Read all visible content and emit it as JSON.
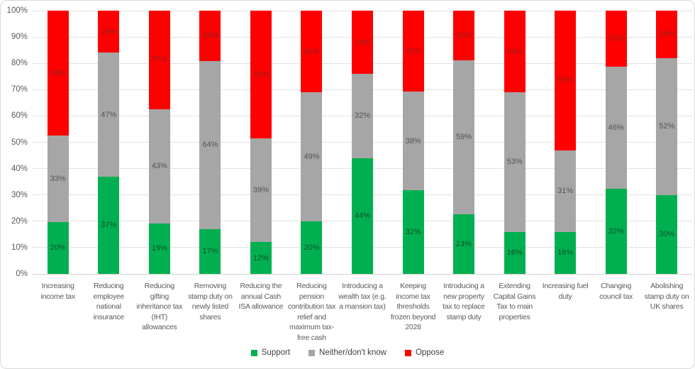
{
  "chart_data": {
    "type": "bar",
    "variant": "stacked-100-percent",
    "title": "",
    "xlabel": "",
    "ylabel": "",
    "grid": true,
    "legend_position": "bottom",
    "y_axis": {
      "min": 0,
      "max": 100,
      "tick_labels": [
        "0%",
        "10%",
        "20%",
        "30%",
        "40%",
        "50%",
        "60%",
        "70%",
        "80%",
        "90%",
        "100%"
      ]
    },
    "categories": [
      "Increasing income tax",
      "Reducing employee national insurance",
      "Reducing gifting inheritance tax (IHT) allowances",
      "Removing stamp duty on newly listed shares",
      "Reducing the annual Cash ISA allowance",
      "Reducing pension contribution tax relief and maximum tax-free cash",
      "Introducing a wealth tax (e.g. a mansion tax)",
      "Keeping income tax thresholds frozen beyond 2028",
      "Introducing a new property tax to replace stamp duty",
      "Extending Capital Gains Tax to main properties",
      "Increasing fuel duty",
      "Changing council tax",
      "Abolishing stamp duty on UK shares"
    ],
    "series": [
      {
        "name": "Support",
        "color": "#00B050",
        "label_color": "#10522C",
        "values": [
          20,
          37,
          19,
          17,
          12,
          20,
          44,
          32,
          23,
          16,
          16,
          32,
          30
        ],
        "labels": [
          "20%",
          "37%",
          "19%",
          "17%",
          "12%",
          "20%",
          "44%",
          "32%",
          "23%",
          "16%",
          "16%",
          "32%",
          "30%"
        ]
      },
      {
        "name": "Neither/don't know",
        "color": "#A6A6A6",
        "label_color": "#555555",
        "values": [
          33,
          47,
          43,
          64,
          39,
          49,
          32,
          38,
          59,
          53,
          31,
          46,
          52
        ],
        "labels": [
          "33%",
          "47%",
          "43%",
          "64%",
          "39%",
          "49%",
          "32%",
          "38%",
          "59%",
          "53%",
          "31%",
          "46%",
          "52%"
        ]
      },
      {
        "name": "Oppose",
        "color": "#FF0000",
        "label_color": "#8F2020",
        "values": [
          48,
          16,
          37,
          19,
          48,
          31,
          24,
          31,
          19,
          31,
          53,
          21,
          18
        ],
        "labels": [
          "48%",
          "16%",
          "37%",
          "19%",
          "48%",
          "31%",
          "24%",
          "31%",
          "19%",
          "31%",
          "53%",
          "21%",
          "18%"
        ]
      }
    ]
  },
  "style": {
    "gridline_color": "#E2E2E2",
    "axis_line_color": "#D0D0D0",
    "axis_text_color": "#595959",
    "border_color": "#D9D9D9",
    "background_color": "#FFFFFF"
  }
}
